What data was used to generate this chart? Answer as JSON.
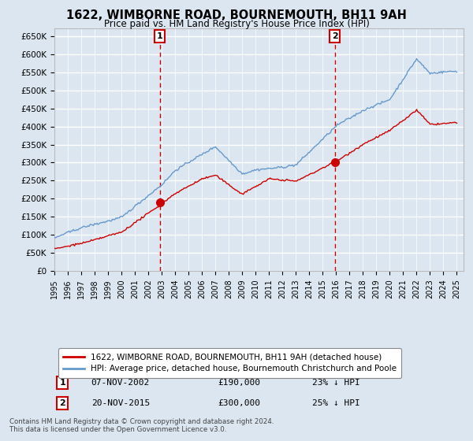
{
  "title": "1622, WIMBORNE ROAD, BOURNEMOUTH, BH11 9AH",
  "subtitle": "Price paid vs. HM Land Registry's House Price Index (HPI)",
  "ylabel_ticks": [
    "£0",
    "£50K",
    "£100K",
    "£150K",
    "£200K",
    "£250K",
    "£300K",
    "£350K",
    "£400K",
    "£450K",
    "£500K",
    "£550K",
    "£600K",
    "£650K"
  ],
  "ytick_values": [
    0,
    50000,
    100000,
    150000,
    200000,
    250000,
    300000,
    350000,
    400000,
    450000,
    500000,
    550000,
    600000,
    650000
  ],
  "ylim": [
    0,
    670000
  ],
  "xlim_start": 1995.0,
  "xlim_end": 2025.5,
  "xtick_years": [
    1995,
    1996,
    1997,
    1998,
    1999,
    2000,
    2001,
    2002,
    2003,
    2004,
    2005,
    2006,
    2007,
    2008,
    2009,
    2010,
    2011,
    2012,
    2013,
    2014,
    2015,
    2016,
    2017,
    2018,
    2019,
    2020,
    2021,
    2022,
    2023,
    2024,
    2025
  ],
  "legend_line1": "1622, WIMBORNE ROAD, BOURNEMOUTH, BH11 9AH (detached house)",
  "legend_line2": "HPI: Average price, detached house, Bournemouth Christchurch and Poole",
  "line1_color": "#cc0000",
  "line2_color": "#6699cc",
  "sale1_year": 2002.85,
  "sale1_price": 190000,
  "sale1_label": "1",
  "sale1_date": "07-NOV-2002",
  "sale1_hpi_diff": "23% ↓ HPI",
  "sale2_year": 2015.9,
  "sale2_price": 300000,
  "sale2_label": "2",
  "sale2_date": "20-NOV-2015",
  "sale2_hpi_diff": "25% ↓ HPI",
  "footnote": "Contains HM Land Registry data © Crown copyright and database right 2024.\nThis data is licensed under the Open Government Licence v3.0.",
  "background_color": "#dce6f0",
  "plot_bg_color": "#dce6f0",
  "grid_color": "#ffffff"
}
